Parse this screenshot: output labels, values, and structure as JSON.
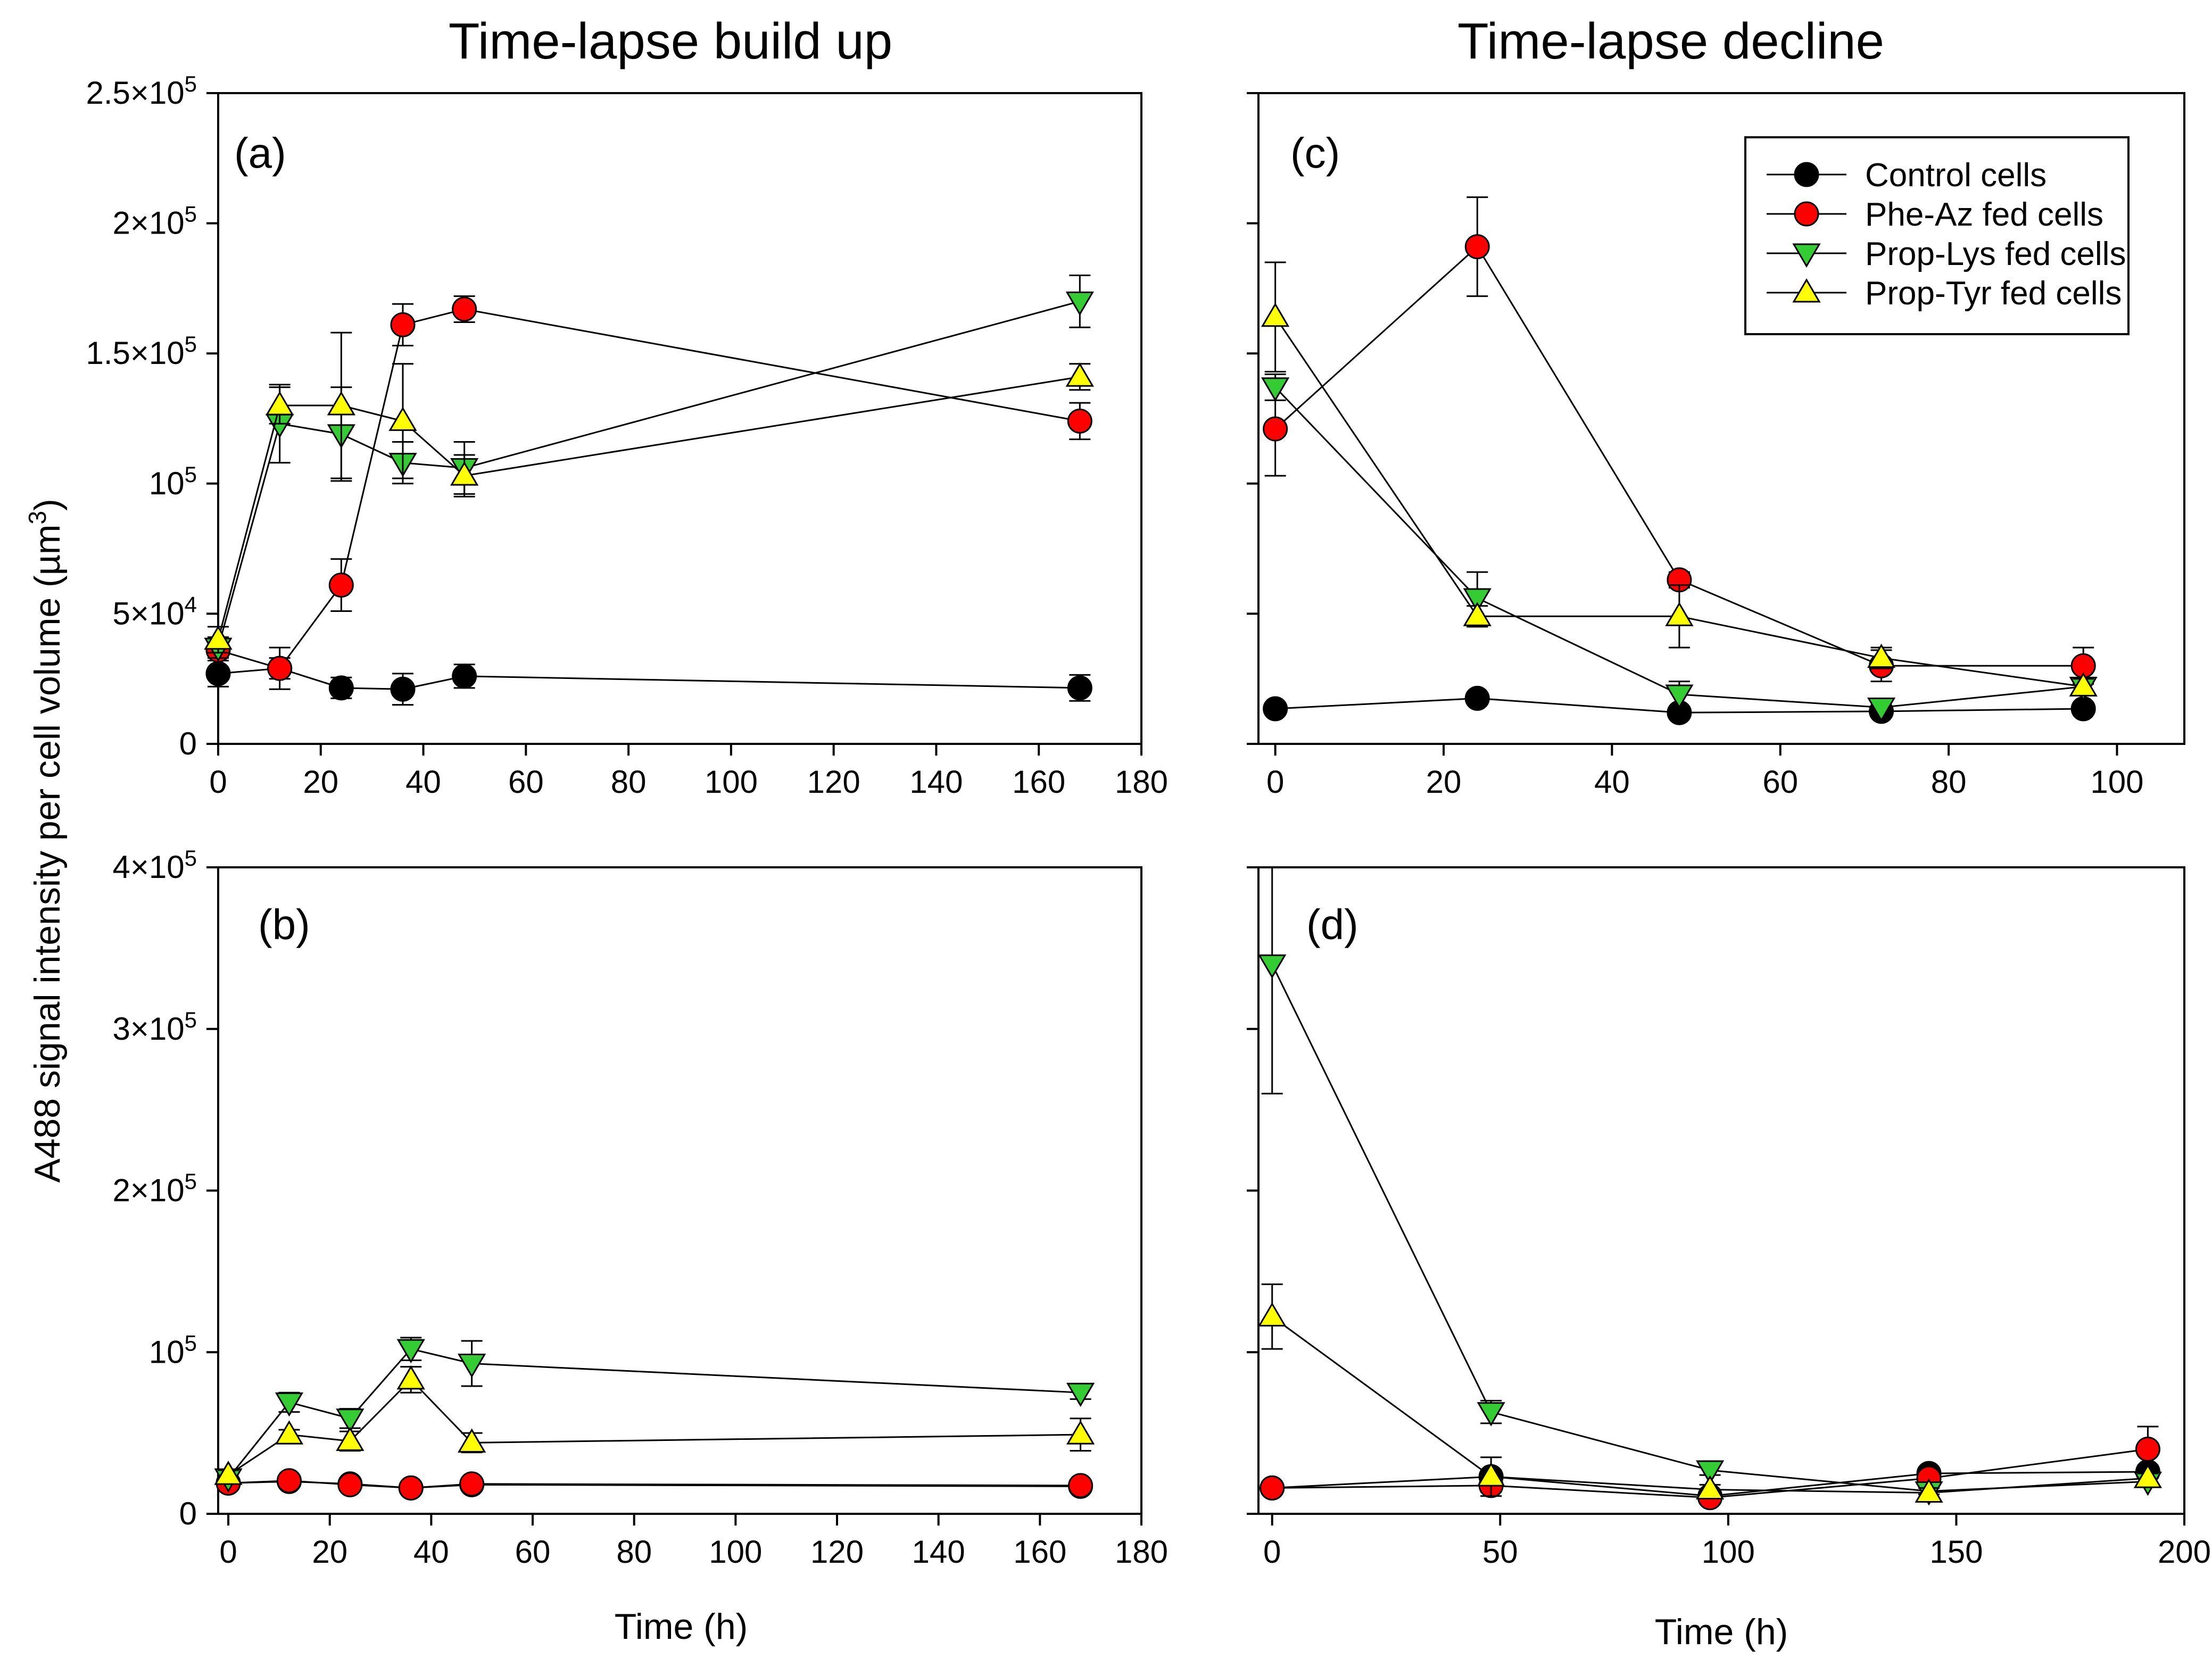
{
  "column_titles": {
    "left": "Time-lapse build up",
    "right": "Time-lapse decline"
  },
  "y_axis_label": "A488 signal intensity per cell volume (µm",
  "y_axis_label_sup": "3",
  "y_axis_label_end": ")",
  "x_axis_label": "Time (h)",
  "legend": [
    {
      "name": "Control cells",
      "marker": "circle",
      "color": "#000000"
    },
    {
      "name": "Phe-Az fed cells",
      "marker": "circle",
      "color": "#ff0000"
    },
    {
      "name": "Prop-Lys fed cells",
      "marker": "triangle-down",
      "color": "#33cc33"
    },
    {
      "name": "Prop-Tyr fed cells",
      "marker": "triangle-up",
      "color": "#ffff00"
    }
  ],
  "chart_data": [
    {
      "panel": "(a)",
      "type": "line",
      "xlabel": "",
      "xlim": [
        0,
        180
      ],
      "ylim": [
        0,
        250000
      ],
      "xticks": [
        "0",
        "20",
        "40",
        "60",
        "80",
        "100",
        "120",
        "140",
        "160",
        "180"
      ],
      "yticks": [
        {
          "value": 0,
          "base": "0",
          "exp": ""
        },
        {
          "value": 50000,
          "base": "5×10",
          "exp": "4"
        },
        {
          "value": 100000,
          "base": "10",
          "exp": "5"
        },
        {
          "value": 150000,
          "base": "1.5×10",
          "exp": "5"
        },
        {
          "value": 200000,
          "base": "2×10",
          "exp": "5"
        },
        {
          "value": 250000,
          "base": "2.5×10",
          "exp": "5"
        }
      ],
      "series": [
        {
          "name": "Control cells",
          "x": [
            0,
            12,
            24,
            36,
            48,
            168
          ],
          "y": [
            27000,
            29000,
            21500,
            21000,
            26000,
            21500
          ],
          "err": [
            5000,
            4000,
            4000,
            6000,
            4500,
            5000
          ]
        },
        {
          "name": "Phe-Az fed cells",
          "x": [
            0,
            12,
            24,
            36,
            48,
            168
          ],
          "y": [
            36000,
            29000,
            61000,
            161000,
            167000,
            124000
          ],
          "err": [
            4000,
            8000,
            10000,
            8000,
            5000,
            7000
          ]
        },
        {
          "name": "Prop-Lys fed cells",
          "x": [
            0,
            12,
            24,
            36,
            48,
            168
          ],
          "y": [
            37000,
            123000,
            119000,
            108000,
            106000,
            170000
          ],
          "err": [
            4000,
            15000,
            18000,
            8000,
            10000,
            10000
          ]
        },
        {
          "name": "Prop-Tyr fed cells",
          "x": [
            0,
            12,
            24,
            36,
            48,
            168
          ],
          "y": [
            40000,
            130000,
            130000,
            124000,
            103000,
            141000
          ],
          "err": [
            5000,
            7000,
            28000,
            22000,
            8000,
            5000
          ]
        }
      ]
    },
    {
      "panel": "(c)",
      "type": "line",
      "xlabel": "",
      "xlim": [
        -2,
        108
      ],
      "ylim": [
        0,
        250000
      ],
      "xticks": [
        "0",
        "20",
        "40",
        "60",
        "80",
        "100"
      ],
      "yticks": [],
      "series": [
        {
          "name": "Control cells",
          "x": [
            0,
            24,
            48,
            72,
            96
          ],
          "y": [
            13500,
            17500,
            12000,
            12500,
            13500
          ],
          "err": [
            2000,
            2000,
            2000,
            2000,
            2000
          ]
        },
        {
          "name": "Phe-Az fed cells",
          "x": [
            0,
            24,
            48,
            72,
            96
          ],
          "y": [
            121000,
            191000,
            63000,
            30000,
            30000
          ],
          "err": [
            18000,
            19000,
            3000,
            6000,
            7000
          ]
        },
        {
          "name": "Prop-Lys fed cells",
          "x": [
            0,
            24,
            48,
            72,
            96
          ],
          "y": [
            137000,
            56000,
            19000,
            14000,
            22000
          ],
          "err": [
            5000,
            10000,
            5000,
            2000,
            3000
          ]
        },
        {
          "name": "Prop-Tyr fed cells",
          "x": [
            0,
            24,
            48,
            72,
            96
          ],
          "y": [
            164000,
            49000,
            49000,
            33000,
            22000
          ],
          "err": [
            21000,
            4000,
            12000,
            4000,
            3000
          ]
        }
      ]
    },
    {
      "panel": "(b)",
      "type": "line",
      "xlabel": "Time (h)",
      "xlim": [
        -2,
        180
      ],
      "ylim": [
        0,
        400000
      ],
      "xticks": [
        "0",
        "20",
        "40",
        "60",
        "80",
        "100",
        "120",
        "140",
        "160",
        "180"
      ],
      "yticks": [
        {
          "value": 0,
          "base": "0",
          "exp": ""
        },
        {
          "value": 100000,
          "base": "10",
          "exp": "5"
        },
        {
          "value": 200000,
          "base": "2×10",
          "exp": "5"
        },
        {
          "value": 300000,
          "base": "3×10",
          "exp": "5"
        },
        {
          "value": 400000,
          "base": "4×10",
          "exp": "5"
        }
      ],
      "series": [
        {
          "name": "Control cells",
          "x": [
            0,
            12,
            24,
            36,
            48,
            168
          ],
          "y": [
            19000,
            20000,
            18500,
            16000,
            18000,
            17000
          ],
          "err": [
            2000,
            2000,
            2000,
            2000,
            2000,
            2000
          ]
        },
        {
          "name": "Phe-Az fed cells",
          "x": [
            0,
            12,
            24,
            36,
            48,
            168
          ],
          "y": [
            19000,
            20500,
            18000,
            16000,
            18500,
            17500
          ],
          "err": [
            2000,
            2000,
            2000,
            2000,
            2000,
            2000
          ]
        },
        {
          "name": "Prop-Lys fed cells",
          "x": [
            0,
            12,
            24,
            36,
            48,
            168
          ],
          "y": [
            22000,
            69000,
            59000,
            102000,
            93000,
            75000
          ],
          "err": [
            3000,
            6000,
            6000,
            7000,
            14000,
            4000
          ]
        },
        {
          "name": "Prop-Tyr fed cells",
          "x": [
            0,
            12,
            24,
            36,
            48,
            168
          ],
          "y": [
            24000,
            49000,
            45000,
            83000,
            44000,
            49000
          ],
          "err": [
            3000,
            3000,
            6000,
            8000,
            6000,
            10000
          ]
        }
      ]
    },
    {
      "panel": "(d)",
      "type": "line",
      "xlabel": "Time (h)",
      "xlim": [
        -3,
        200
      ],
      "ylim": [
        0,
        400000
      ],
      "xticks": [
        "0",
        "50",
        "100",
        "150",
        "200"
      ],
      "yticks": [],
      "series": [
        {
          "name": "Control cells",
          "x": [
            0,
            48,
            96,
            144,
            192
          ],
          "y": [
            16000,
            23000,
            11000,
            25000,
            26000
          ],
          "err": [
            3000,
            4000,
            2000,
            3000,
            4000
          ]
        },
        {
          "name": "Phe-Az fed cells",
          "x": [
            0,
            48,
            96,
            144,
            192
          ],
          "y": [
            16000,
            17500,
            10000,
            22000,
            40000
          ],
          "err": [
            3000,
            4000,
            2000,
            3000,
            14000
          ]
        },
        {
          "name": "Prop-Lys fed cells",
          "x": [
            0,
            48,
            96,
            144,
            192
          ],
          "y": [
            340000,
            63000,
            27000,
            14000,
            20000
          ],
          "err": [
            80000,
            7000,
            3000,
            2000,
            3000
          ]
        },
        {
          "name": "Prop-Tyr fed cells",
          "x": [
            0,
            48,
            96,
            144,
            192
          ],
          "y": [
            122000,
            23000,
            15000,
            13000,
            22000
          ],
          "err": [
            20000,
            12000,
            3000,
            3000,
            3000
          ]
        }
      ]
    }
  ]
}
